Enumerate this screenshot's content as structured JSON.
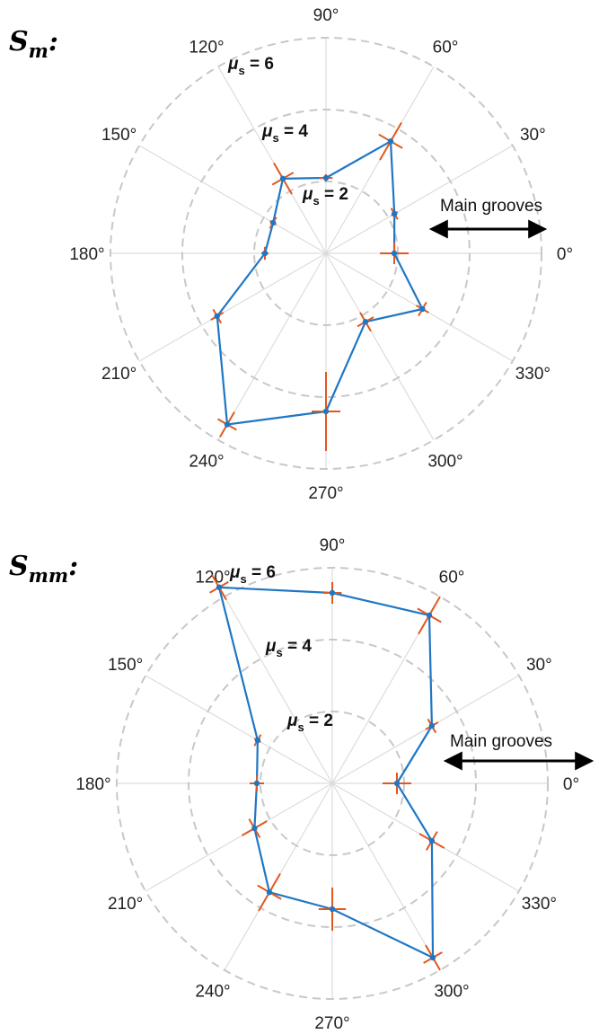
{
  "colors": {
    "series": "#1f77c4",
    "error_bars": "#e2571e",
    "rings": "#c8c8c8",
    "spokes": "#dcdcdc",
    "text": "#222222"
  },
  "chart_data": [
    {
      "type": "polar-line",
      "title": "S",
      "title_sub": "m",
      "title_suffix": ":",
      "angles": [
        0,
        30,
        60,
        90,
        120,
        150,
        180,
        210,
        240,
        270,
        300,
        330
      ],
      "angle_labels": [
        "0°",
        "30°",
        "60°",
        "90°",
        "120°",
        "150°",
        "180°",
        "210°",
        "240°",
        "270°",
        "300°",
        "330°"
      ],
      "rings": [
        2,
        4,
        6
      ],
      "ring_labels": [
        {
          "symbol": "μ",
          "sub": "s",
          "text": " = 2"
        },
        {
          "symbol": "μ",
          "sub": "s",
          "text": " = 4"
        },
        {
          "symbol": "μ",
          "sub": "s",
          "text": " = 6"
        }
      ],
      "rlim": [
        0,
        6
      ],
      "grid": true,
      "annotation": "Main grooves",
      "series": [
        {
          "points": [
            {
              "theta": 0,
              "r": 1.9,
              "err": 0.4
            },
            {
              "theta": 30,
              "r": 2.2,
              "err": 0.1
            },
            {
              "theta": 60,
              "r": 3.6,
              "err": 0.6
            },
            {
              "theta": 90,
              "r": 2.1,
              "err": 0.1
            },
            {
              "theta": 120,
              "r": 2.4,
              "err": 0.5
            },
            {
              "theta": 150,
              "r": 1.7,
              "err": 0.1
            },
            {
              "theta": 180,
              "r": 1.7,
              "err": 0.1
            },
            {
              "theta": 210,
              "r": 3.5,
              "err": 0.2
            },
            {
              "theta": 240,
              "r": 5.5,
              "err": 0.4
            },
            {
              "theta": 270,
              "r": 4.4,
              "err": 1.1
            },
            {
              "theta": 300,
              "r": 2.2,
              "err": 0.3
            },
            {
              "theta": 330,
              "r": 3.1,
              "err": 0.2
            }
          ]
        }
      ]
    },
    {
      "type": "polar-line",
      "title": "S",
      "title_sub": "mm",
      "title_suffix": ":",
      "angles": [
        0,
        30,
        60,
        90,
        120,
        150,
        180,
        210,
        240,
        270,
        300,
        330
      ],
      "angle_labels": [
        "0°",
        "30°",
        "60°",
        "90°",
        "120°",
        "150°",
        "180°",
        "210°",
        "240°",
        "270°",
        "300°",
        "330°"
      ],
      "rings": [
        2,
        4,
        6
      ],
      "ring_labels": [
        {
          "symbol": "μ",
          "sub": "s",
          "text": " = 2"
        },
        {
          "symbol": "μ",
          "sub": "s",
          "text": " = 4"
        },
        {
          "symbol": "μ",
          "sub": "s",
          "text": " = 6"
        }
      ],
      "rlim": [
        0,
        6
      ],
      "grid": true,
      "annotation": "Main grooves",
      "series": [
        {
          "points": [
            {
              "theta": 0,
              "r": 1.8,
              "err": 0.4
            },
            {
              "theta": 30,
              "r": 3.2,
              "err": 0.2
            },
            {
              "theta": 60,
              "r": 5.4,
              "err": 0.6
            },
            {
              "theta": 90,
              "r": 5.3,
              "err": 0.3
            },
            {
              "theta": 120,
              "r": 6.3,
              "err": 0.4
            },
            {
              "theta": 150,
              "r": 2.4,
              "err": 0.1
            },
            {
              "theta": 180,
              "r": 2.1,
              "err": 0.2
            },
            {
              "theta": 210,
              "r": 2.5,
              "err": 0.4
            },
            {
              "theta": 240,
              "r": 3.5,
              "err": 0.6
            },
            {
              "theta": 270,
              "r": 3.5,
              "err": 0.6
            },
            {
              "theta": 300,
              "r": 5.6,
              "err": 0.4
            },
            {
              "theta": 330,
              "r": 3.2,
              "err": 0.4
            }
          ]
        }
      ]
    }
  ]
}
